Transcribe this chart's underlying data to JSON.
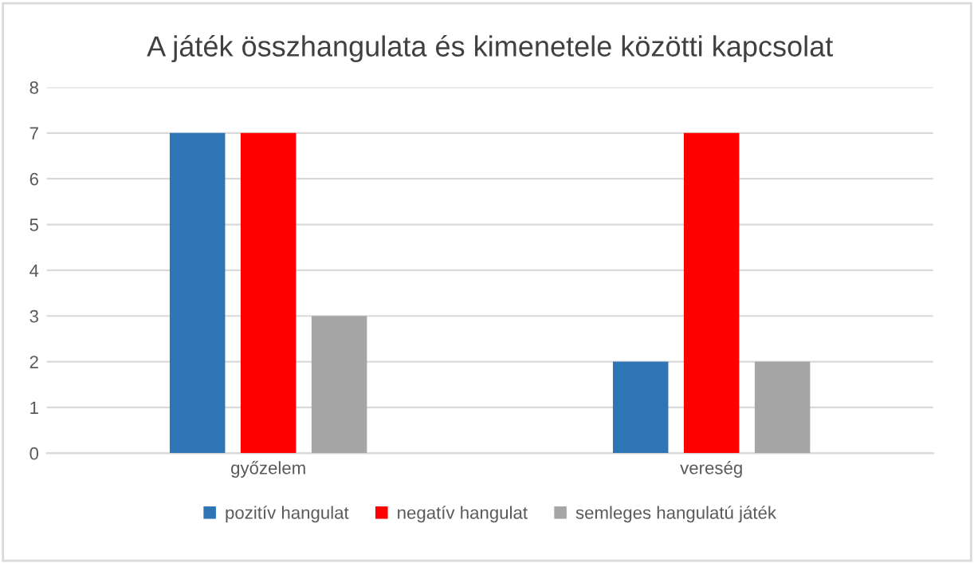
{
  "chart_data": {
    "type": "bar",
    "title": "A játék összhangulata és kimenetele közötti kapcsolat",
    "categories": [
      "győzelem",
      "vereség"
    ],
    "series": [
      {
        "name": "pozitív hangulat",
        "color": "#2e75b6",
        "values": [
          7,
          2
        ]
      },
      {
        "name": "negatív hangulat",
        "color": "#ff0000",
        "values": [
          7,
          7
        ]
      },
      {
        "name": "semleges hangulatú játék",
        "color": "#a5a5a5",
        "values": [
          3,
          2
        ]
      }
    ],
    "ylim": [
      0,
      8
    ],
    "yticks": [
      0,
      1,
      2,
      3,
      4,
      5,
      6,
      7,
      8
    ],
    "grid": "y",
    "legend": "bottom"
  }
}
